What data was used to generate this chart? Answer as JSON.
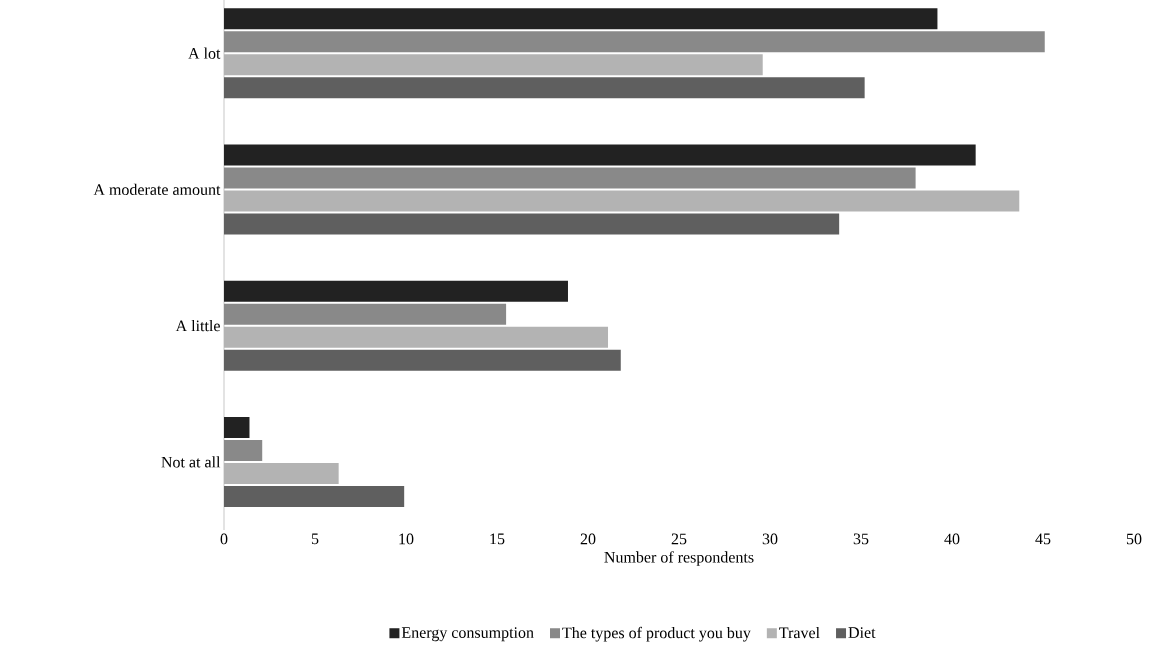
{
  "chart_data": {
    "type": "bar",
    "orientation": "horizontal",
    "xlabel": "Number of respondents",
    "categories": [
      "A lot",
      "A moderate amount",
      "A little",
      "Not at all"
    ],
    "series": [
      {
        "name": "Energy consumption",
        "color": "#222222",
        "values": [
          39.2,
          41.3,
          18.9,
          1.4
        ]
      },
      {
        "name": "The types of product you buy",
        "color": "#898989",
        "values": [
          45.1,
          38.0,
          15.5,
          2.1
        ]
      },
      {
        "name": "Travel",
        "color": "#b3b3b3",
        "values": [
          29.6,
          43.7,
          21.1,
          6.3
        ]
      },
      {
        "name": "Diet",
        "color": "#5f5f5f",
        "values": [
          35.2,
          33.8,
          21.8,
          9.9
        ]
      }
    ],
    "xlim": [
      0,
      50
    ],
    "xticks": [
      0,
      5,
      10,
      15,
      20,
      25,
      30,
      35,
      40,
      45,
      50
    ],
    "grid": false,
    "legend": "bottom"
  }
}
